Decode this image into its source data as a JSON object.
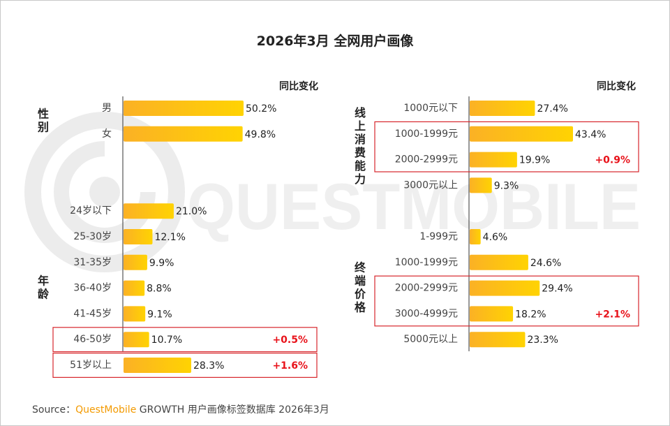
{
  "title": "2026年3月 全网用户画像",
  "watermark": "QUESTMOBILE",
  "source": {
    "prefix": "Source：",
    "brand": "QuestMobile",
    "suffix": " GROWTH 用户画像标签数据库 2026年3月"
  },
  "colors": {
    "bar_start": "#fbb125",
    "bar_end": "#ffd302",
    "highlight_box": "#d7262c",
    "change_text": "#e8121a",
    "axis": "#333333"
  },
  "chart_data": [
    {
      "type": "bar",
      "orientation": "horizontal",
      "unit": "%",
      "column_header": "同比变化",
      "xlim": [
        0,
        60
      ],
      "groups": [
        {
          "label": "性别",
          "categories": [
            "男",
            "女"
          ],
          "values": [
            50.2,
            49.8
          ],
          "changes": [
            "",
            ""
          ]
        },
        {
          "label": "年龄",
          "categories": [
            "24岁以下",
            "25-30岁",
            "31-35岁",
            "36-40岁",
            "41-45岁",
            "46-50岁",
            "51岁以上"
          ],
          "values": [
            21.0,
            12.1,
            9.9,
            8.8,
            9.1,
            10.7,
            28.3
          ],
          "changes": [
            "",
            "",
            "",
            "",
            "",
            "+0.5%",
            "+1.6%"
          ],
          "highlight_boxes": [
            [
              5,
              5
            ],
            [
              6,
              6
            ]
          ]
        }
      ]
    },
    {
      "type": "bar",
      "orientation": "horizontal",
      "unit": "%",
      "column_header": "同比变化",
      "xlim": [
        0,
        60
      ],
      "groups": [
        {
          "label": "线上消费能力",
          "categories": [
            "1000元以下",
            "1000-1999元",
            "2000-2999元",
            "3000元以上"
          ],
          "values": [
            27.4,
            43.4,
            19.9,
            9.3
          ],
          "changes": [
            "",
            "",
            "+0.9%",
            ""
          ],
          "highlight_boxes": [
            [
              1,
              2
            ]
          ]
        },
        {
          "label": "终端价格",
          "categories": [
            "1-999元",
            "1000-1999元",
            "2000-2999元",
            "3000-4999元",
            "5000元以上"
          ],
          "values": [
            4.6,
            24.6,
            29.4,
            18.2,
            23.3
          ],
          "changes": [
            "",
            "",
            "",
            "+2.1%",
            ""
          ],
          "highlight_boxes": [
            [
              2,
              3
            ]
          ]
        }
      ]
    }
  ]
}
